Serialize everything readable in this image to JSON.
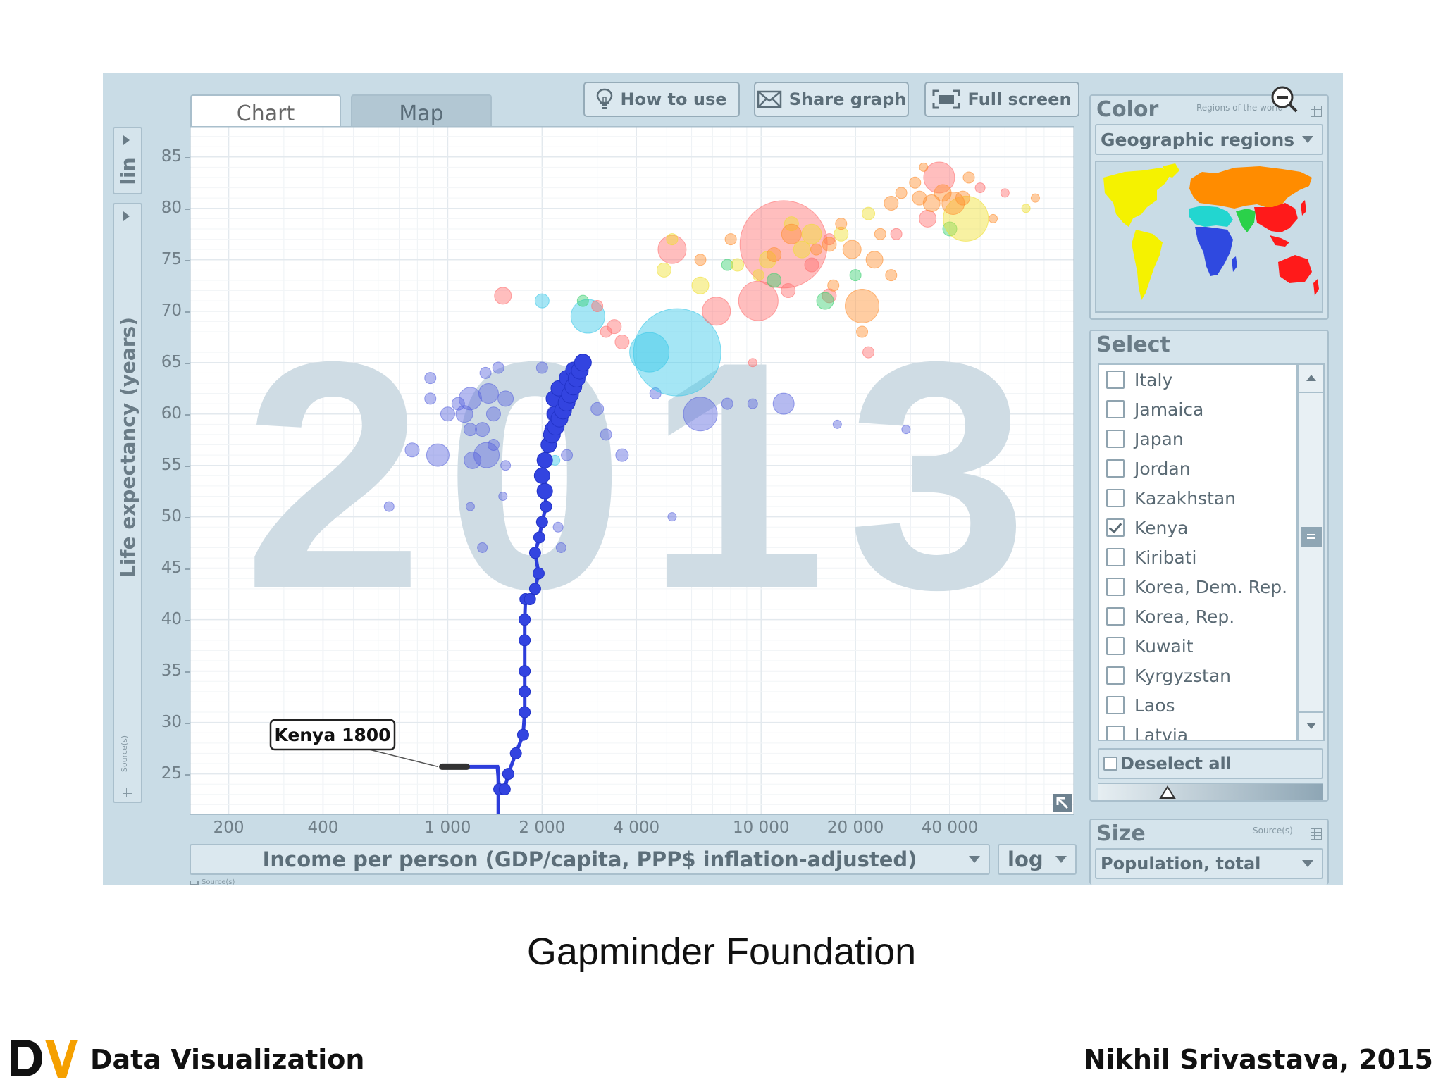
{
  "tabs": [
    {
      "label": "Chart",
      "active": true
    },
    {
      "label": "Map",
      "active": false
    }
  ],
  "toolbar": {
    "how_to_use": "How to use",
    "share_graph": "Share graph",
    "full_screen": "Full screen"
  },
  "y_axis": {
    "scale": "lin",
    "indicator": "Life expectancy (years)",
    "source_label": "Source(s)"
  },
  "x_axis": {
    "indicator": "Income per person (GDP/capita, PPP$ inflation-adjusted)",
    "scale": "log",
    "source_label": "Source(s)"
  },
  "color_panel": {
    "title": "Color",
    "hint": "Regions of the world",
    "selected": "Geographic regions",
    "region_colors": {
      "americas": "#f5f200",
      "europe_central_asia": "#ff8c00",
      "sub_saharan_africa": "#2f49e0",
      "middle_east_north_africa": "#22d6d0",
      "south_asia": "#2bd14a",
      "east_asia_pacific": "#ff1a1a"
    }
  },
  "select_panel": {
    "title": "Select",
    "items": [
      {
        "label": "Italy",
        "checked": false
      },
      {
        "label": "Jamaica",
        "checked": false
      },
      {
        "label": "Japan",
        "checked": false
      },
      {
        "label": "Jordan",
        "checked": false
      },
      {
        "label": "Kazakhstan",
        "checked": false
      },
      {
        "label": "Kenya",
        "checked": true
      },
      {
        "label": "Kiribati",
        "checked": false
      },
      {
        "label": "Korea, Dem. Rep.",
        "checked": false
      },
      {
        "label": "Korea, Rep.",
        "checked": false
      },
      {
        "label": "Kuwait",
        "checked": false
      },
      {
        "label": "Kyrgyzstan",
        "checked": false
      },
      {
        "label": "Laos",
        "checked": false
      },
      {
        "label": "Latvia",
        "checked": false
      }
    ],
    "deselect_all": "Deselect all"
  },
  "size_panel": {
    "title": "Size",
    "source_label": "Source(s)",
    "selected": "Population, total"
  },
  "chart_data": {
    "type": "scatter",
    "year_label": "2013",
    "xlabel": "Income per person (GDP/capita, PPP$ inflation-adjusted)",
    "ylabel": "Life expectancy (years)",
    "xscale": "log",
    "xlim": [
      150,
      100000
    ],
    "ylim": [
      21,
      88
    ],
    "x_ticks": [
      {
        "value": 200,
        "label": "200"
      },
      {
        "value": 400,
        "label": "400"
      },
      {
        "value": 1000,
        "label": "1 000"
      },
      {
        "value": 2000,
        "label": "2 000"
      },
      {
        "value": 4000,
        "label": "4 000"
      },
      {
        "value": 10000,
        "label": "10 000"
      },
      {
        "value": 20000,
        "label": "20 000"
      },
      {
        "value": 40000,
        "label": "40 000"
      }
    ],
    "y_ticks": [
      25,
      30,
      35,
      40,
      45,
      50,
      55,
      60,
      65,
      70,
      75,
      80,
      85
    ],
    "grid": true,
    "annotation": "Kenya 1800",
    "trail": {
      "name": "Kenya",
      "points": [
        [
          960,
          25.7
        ],
        [
          1200,
          25.7
        ],
        [
          1440,
          25.7
        ],
        [
          1460,
          23.5
        ],
        [
          1520,
          23.5
        ],
        [
          1560,
          25
        ],
        [
          1650,
          27
        ],
        [
          1740,
          28.8
        ],
        [
          1760,
          31
        ],
        [
          1760,
          33
        ],
        [
          1760,
          35
        ],
        [
          1760,
          38
        ],
        [
          1760,
          40
        ],
        [
          1770,
          42
        ],
        [
          1830,
          42
        ],
        [
          1900,
          43
        ],
        [
          1950,
          44.5
        ],
        [
          1900,
          46.5
        ],
        [
          1960,
          48
        ],
        [
          2000,
          49.5
        ],
        [
          2060,
          51
        ],
        [
          2040,
          52.5
        ],
        [
          2000,
          54
        ],
        [
          2040,
          55.5
        ],
        [
          2100,
          57
        ],
        [
          2160,
          58.5
        ],
        [
          2200,
          60
        ],
        [
          2180,
          61.5
        ],
        [
          2260,
          62.5
        ],
        [
          2400,
          63.5
        ],
        [
          2520,
          64.3
        ],
        [
          2700,
          65
        ]
      ]
    },
    "bubbles": [
      {
        "x": 1290,
        "y": 47,
        "r": 7,
        "c": "#5a66dd"
      },
      {
        "x": 1330,
        "y": 56,
        "r": 18,
        "c": "#5a66dd"
      },
      {
        "x": 1400,
        "y": 60,
        "r": 10,
        "c": "#5a66dd"
      },
      {
        "x": 1350,
        "y": 62,
        "r": 14,
        "c": "#5a66dd"
      },
      {
        "x": 1530,
        "y": 61.5,
        "r": 11,
        "c": "#5a66dd"
      },
      {
        "x": 1450,
        "y": 64.5,
        "r": 8,
        "c": "#5a66dd"
      },
      {
        "x": 1320,
        "y": 64,
        "r": 8,
        "c": "#5a66dd"
      },
      {
        "x": 1200,
        "y": 55.5,
        "r": 12,
        "c": "#5a66dd"
      },
      {
        "x": 1180,
        "y": 58.5,
        "r": 9,
        "c": "#5a66dd"
      },
      {
        "x": 1290,
        "y": 58.5,
        "r": 10,
        "c": "#5a66dd"
      },
      {
        "x": 1400,
        "y": 57,
        "r": 8,
        "c": "#5a66dd"
      },
      {
        "x": 1530,
        "y": 55,
        "r": 7,
        "c": "#5a66dd"
      },
      {
        "x": 930,
        "y": 56,
        "r": 16,
        "c": "#5a66dd"
      },
      {
        "x": 770,
        "y": 56.5,
        "r": 10,
        "c": "#5a66dd"
      },
      {
        "x": 880,
        "y": 61.5,
        "r": 8,
        "c": "#5a66dd"
      },
      {
        "x": 1000,
        "y": 60,
        "r": 10,
        "c": "#5a66dd"
      },
      {
        "x": 1080,
        "y": 61,
        "r": 9,
        "c": "#5a66dd"
      },
      {
        "x": 1180,
        "y": 61.5,
        "r": 16,
        "c": "#5a66dd"
      },
      {
        "x": 1130,
        "y": 60,
        "r": 12,
        "c": "#5a66dd"
      },
      {
        "x": 1500,
        "y": 52,
        "r": 6,
        "c": "#5a66dd"
      },
      {
        "x": 1180,
        "y": 51,
        "r": 6,
        "c": "#5a66dd"
      },
      {
        "x": 650,
        "y": 51,
        "r": 7,
        "c": "#5a66dd"
      },
      {
        "x": 880,
        "y": 63.5,
        "r": 8,
        "c": "#5a66dd"
      },
      {
        "x": 2400,
        "y": 56,
        "r": 8,
        "c": "#5a66dd"
      },
      {
        "x": 2200,
        "y": 60,
        "r": 12,
        "c": "#5a66dd"
      },
      {
        "x": 3200,
        "y": 58,
        "r": 8,
        "c": "#5a66dd"
      },
      {
        "x": 3600,
        "y": 56,
        "r": 9,
        "c": "#5a66dd"
      },
      {
        "x": 2300,
        "y": 47,
        "r": 7,
        "c": "#5a66dd"
      },
      {
        "x": 2250,
        "y": 49,
        "r": 7,
        "c": "#5a66dd"
      },
      {
        "x": 2000,
        "y": 64.5,
        "r": 8,
        "c": "#5a66dd"
      },
      {
        "x": 3000,
        "y": 60.5,
        "r": 9,
        "c": "#5a66dd"
      },
      {
        "x": 6400,
        "y": 60,
        "r": 24,
        "c": "#5a66dd"
      },
      {
        "x": 7800,
        "y": 61,
        "r": 8,
        "c": "#5a66dd"
      },
      {
        "x": 5200,
        "y": 50,
        "r": 6,
        "c": "#5a66dd"
      },
      {
        "x": 9400,
        "y": 61,
        "r": 7,
        "c": "#5a66dd"
      },
      {
        "x": 11800,
        "y": 61,
        "r": 15,
        "c": "#5a66dd"
      },
      {
        "x": 17500,
        "y": 59,
        "r": 6,
        "c": "#5a66dd"
      },
      {
        "x": 29000,
        "y": 58.5,
        "r": 6,
        "c": "#5a66dd"
      },
      {
        "x": 4600,
        "y": 62,
        "r": 8,
        "c": "#5a66dd"
      },
      {
        "x": 5400,
        "y": 66,
        "r": 62,
        "c": "#38c8e8"
      },
      {
        "x": 4400,
        "y": 66,
        "r": 28,
        "c": "#38c8e8"
      },
      {
        "x": 2800,
        "y": 69.5,
        "r": 24,
        "c": "#38c8e8"
      },
      {
        "x": 2000,
        "y": 71,
        "r": 10,
        "c": "#38c8e8"
      },
      {
        "x": 2200,
        "y": 55.5,
        "r": 7,
        "c": "#38c8e8"
      },
      {
        "x": 3600,
        "y": 67,
        "r": 10,
        "c": "#ff6f6f"
      },
      {
        "x": 3200,
        "y": 68,
        "r": 8,
        "c": "#ff6f6f"
      },
      {
        "x": 3000,
        "y": 70.5,
        "r": 8,
        "c": "#ff6f6f"
      },
      {
        "x": 3400,
        "y": 68.5,
        "r": 10,
        "c": "#ff6f6f"
      },
      {
        "x": 7200,
        "y": 70,
        "r": 20,
        "c": "#ff6f6f"
      },
      {
        "x": 11800,
        "y": 76.5,
        "r": 62,
        "c": "#ff6f6f"
      },
      {
        "x": 12200,
        "y": 72,
        "r": 10,
        "c": "#ff6f6f"
      },
      {
        "x": 9800,
        "y": 71,
        "r": 28,
        "c": "#ff6f6f"
      },
      {
        "x": 1500,
        "y": 71.5,
        "r": 12,
        "c": "#ff6f6f"
      },
      {
        "x": 5200,
        "y": 76,
        "r": 20,
        "c": "#ff6f6f"
      },
      {
        "x": 9400,
        "y": 65,
        "r": 6,
        "c": "#ff6f6f"
      },
      {
        "x": 37000,
        "y": 83,
        "r": 22,
        "c": "#ff6f6f"
      },
      {
        "x": 34000,
        "y": 79,
        "r": 12,
        "c": "#ff6f6f"
      },
      {
        "x": 50000,
        "y": 82,
        "r": 7,
        "c": "#ff6f6f"
      },
      {
        "x": 60000,
        "y": 81.5,
        "r": 6,
        "c": "#ff6f6f"
      },
      {
        "x": 14500,
        "y": 74.5,
        "r": 10,
        "c": "#ff6f6f"
      },
      {
        "x": 16500,
        "y": 77,
        "r": 8,
        "c": "#ff6f6f"
      },
      {
        "x": 27000,
        "y": 77.5,
        "r": 8,
        "c": "#ff6f6f"
      },
      {
        "x": 16500,
        "y": 71.5,
        "r": 10,
        "c": "#ff6f6f"
      },
      {
        "x": 22000,
        "y": 66,
        "r": 8,
        "c": "#ff6f6f"
      },
      {
        "x": 11000,
        "y": 73,
        "r": 10,
        "c": "#3ad070"
      },
      {
        "x": 7800,
        "y": 74.5,
        "r": 8,
        "c": "#3ad070"
      },
      {
        "x": 16000,
        "y": 71,
        "r": 12,
        "c": "#3ad070"
      },
      {
        "x": 40000,
        "y": 78,
        "r": 10,
        "c": "#3ad070"
      },
      {
        "x": 20000,
        "y": 73.5,
        "r": 8,
        "c": "#3ad070"
      },
      {
        "x": 2700,
        "y": 71,
        "r": 8,
        "c": "#3ad070"
      },
      {
        "x": 4900,
        "y": 74,
        "r": 10,
        "c": "#f0e030"
      },
      {
        "x": 5200,
        "y": 77,
        "r": 8,
        "c": "#f0e030"
      },
      {
        "x": 6400,
        "y": 72.5,
        "r": 12,
        "c": "#f0e030"
      },
      {
        "x": 8400,
        "y": 74.5,
        "r": 9,
        "c": "#f0e030"
      },
      {
        "x": 10500,
        "y": 75,
        "r": 12,
        "c": "#f0e030"
      },
      {
        "x": 13500,
        "y": 76,
        "r": 12,
        "c": "#f0e030"
      },
      {
        "x": 14500,
        "y": 77.5,
        "r": 14,
        "c": "#f0e030"
      },
      {
        "x": 18000,
        "y": 77.5,
        "r": 10,
        "c": "#f0e030"
      },
      {
        "x": 45000,
        "y": 79,
        "r": 32,
        "c": "#f0e030"
      },
      {
        "x": 22000,
        "y": 79.5,
        "r": 9,
        "c": "#f0e030"
      },
      {
        "x": 9800,
        "y": 73.5,
        "r": 8,
        "c": "#f0e030"
      },
      {
        "x": 12500,
        "y": 78.5,
        "r": 10,
        "c": "#f0e030"
      },
      {
        "x": 16500,
        "y": 76.5,
        "r": 10,
        "c": "#ff9030"
      },
      {
        "x": 19500,
        "y": 76,
        "r": 13,
        "c": "#ff9030"
      },
      {
        "x": 21000,
        "y": 70.5,
        "r": 24,
        "c": "#ff9030"
      },
      {
        "x": 23000,
        "y": 75,
        "r": 12,
        "c": "#ff9030"
      },
      {
        "x": 26000,
        "y": 80.5,
        "r": 10,
        "c": "#ff9030"
      },
      {
        "x": 28000,
        "y": 81.5,
        "r": 8,
        "c": "#ff9030"
      },
      {
        "x": 32000,
        "y": 81,
        "r": 10,
        "c": "#ff9030"
      },
      {
        "x": 35000,
        "y": 80.5,
        "r": 12,
        "c": "#ff9030"
      },
      {
        "x": 38000,
        "y": 81.5,
        "r": 12,
        "c": "#ff9030"
      },
      {
        "x": 41000,
        "y": 80.5,
        "r": 16,
        "c": "#ff9030"
      },
      {
        "x": 44000,
        "y": 81,
        "r": 10,
        "c": "#ff9030"
      },
      {
        "x": 31000,
        "y": 82.5,
        "r": 8,
        "c": "#ff9030"
      },
      {
        "x": 24000,
        "y": 77.5,
        "r": 8,
        "c": "#ff9030"
      },
      {
        "x": 26000,
        "y": 73.5,
        "r": 8,
        "c": "#ff9030"
      },
      {
        "x": 21000,
        "y": 68,
        "r": 8,
        "c": "#ff9030"
      },
      {
        "x": 18000,
        "y": 78.5,
        "r": 8,
        "c": "#ff9030"
      },
      {
        "x": 15000,
        "y": 76,
        "r": 8,
        "c": "#ff9030"
      },
      {
        "x": 11000,
        "y": 75.5,
        "r": 10,
        "c": "#ff9030"
      },
      {
        "x": 12500,
        "y": 77.5,
        "r": 14,
        "c": "#ff9030"
      },
      {
        "x": 46000,
        "y": 83,
        "r": 8,
        "c": "#ff9030"
      },
      {
        "x": 70000,
        "y": 80,
        "r": 6,
        "c": "#f0e030"
      },
      {
        "x": 75000,
        "y": 81,
        "r": 6,
        "c": "#ff9030"
      },
      {
        "x": 55000,
        "y": 79,
        "r": 6,
        "c": "#ff9030"
      },
      {
        "x": 33000,
        "y": 84,
        "r": 6,
        "c": "#ff9030"
      },
      {
        "x": 6400,
        "y": 75,
        "r": 8,
        "c": "#ff9030"
      },
      {
        "x": 8000,
        "y": 77,
        "r": 8,
        "c": "#ff9030"
      },
      {
        "x": 17000,
        "y": 72.5,
        "r": 8,
        "c": "#ff9030"
      }
    ]
  }
}
